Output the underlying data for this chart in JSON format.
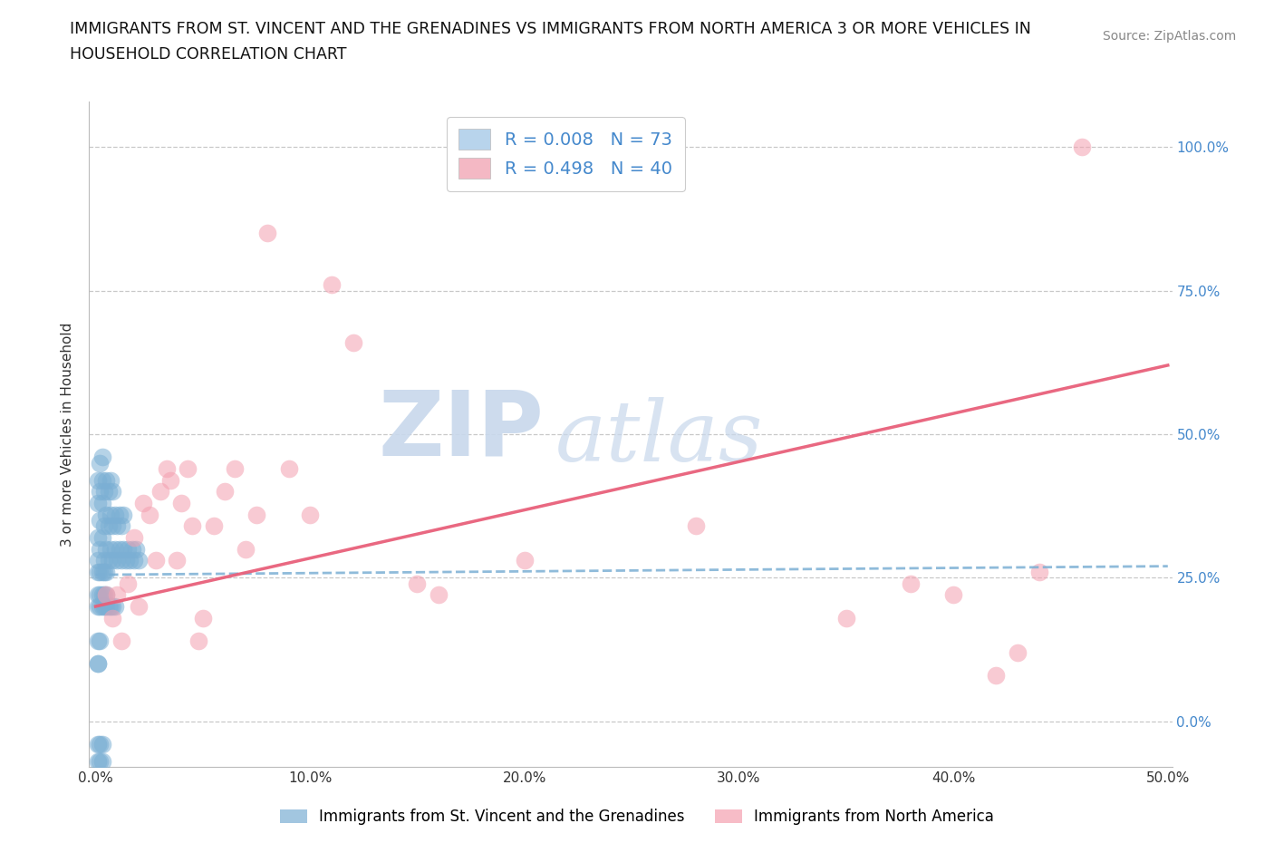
{
  "title_line1": "IMMIGRANTS FROM ST. VINCENT AND THE GRENADINES VS IMMIGRANTS FROM NORTH AMERICA 3 OR MORE VEHICLES IN",
  "title_line2": "HOUSEHOLD CORRELATION CHART",
  "source": "Source: ZipAtlas.com",
  "ylabel": "3 or more Vehicles in Household",
  "xlabel_blue": "Immigrants from St. Vincent and the Grenadines",
  "xlabel_pink": "Immigrants from North America",
  "xlim": [
    -0.003,
    0.502
  ],
  "ylim": [
    -0.08,
    1.08
  ],
  "xtick_vals": [
    0.0,
    0.1,
    0.2,
    0.3,
    0.4,
    0.5
  ],
  "xticklabels": [
    "0.0%",
    "10.0%",
    "20.0%",
    "30.0%",
    "40.0%",
    "50.0%"
  ],
  "ytick_vals": [
    0.0,
    0.25,
    0.5,
    0.75,
    1.0
  ],
  "yticklabels": [
    "0.0%",
    "25.0%",
    "50.0%",
    "75.0%",
    "100.0%"
  ],
  "R_blue": 0.008,
  "N_blue": 73,
  "R_pink": 0.498,
  "N_pink": 40,
  "color_blue": "#7BAFD4",
  "color_pink": "#F4A0B0",
  "line_blue_color": "#7BAFD4",
  "line_pink_color": "#E8607A",
  "legend_box_blue": "#B8D4EC",
  "legend_box_pink": "#F4B8C4",
  "watermark_zip": "ZIP",
  "watermark_atlas": "atlas",
  "blue_x": [
    0.001,
    0.001,
    0.001,
    0.001,
    0.002,
    0.002,
    0.002,
    0.002,
    0.003,
    0.003,
    0.003,
    0.003,
    0.004,
    0.004,
    0.004,
    0.005,
    0.005,
    0.005,
    0.006,
    0.006,
    0.006,
    0.007,
    0.007,
    0.007,
    0.008,
    0.008,
    0.008,
    0.009,
    0.009,
    0.01,
    0.01,
    0.011,
    0.011,
    0.012,
    0.012,
    0.013,
    0.013,
    0.014,
    0.015,
    0.016,
    0.017,
    0.018,
    0.019,
    0.02,
    0.001,
    0.001,
    0.002,
    0.002,
    0.003,
    0.003,
    0.004,
    0.004,
    0.005,
    0.005,
    0.001,
    0.002,
    0.003,
    0.004,
    0.005,
    0.006,
    0.007,
    0.008,
    0.009,
    0.001,
    0.001,
    0.002,
    0.002,
    0.003,
    0.003,
    0.001,
    0.001,
    0.002,
    0.001
  ],
  "blue_y": [
    0.28,
    0.32,
    0.38,
    0.42,
    0.3,
    0.35,
    0.4,
    0.45,
    0.32,
    0.38,
    0.42,
    0.46,
    0.28,
    0.34,
    0.4,
    0.3,
    0.36,
    0.42,
    0.28,
    0.34,
    0.4,
    0.3,
    0.36,
    0.42,
    0.28,
    0.34,
    0.4,
    0.3,
    0.36,
    0.28,
    0.34,
    0.3,
    0.36,
    0.28,
    0.34,
    0.3,
    0.36,
    0.28,
    0.3,
    0.28,
    0.3,
    0.28,
    0.3,
    0.28,
    0.22,
    0.26,
    0.22,
    0.26,
    0.22,
    0.26,
    0.22,
    0.26,
    0.22,
    0.26,
    0.2,
    0.2,
    0.2,
    0.2,
    0.2,
    0.2,
    0.2,
    0.2,
    0.2,
    -0.04,
    -0.07,
    -0.04,
    -0.07,
    -0.04,
    -0.07,
    0.14,
    0.1,
    0.14,
    0.1
  ],
  "pink_x": [
    0.005,
    0.008,
    0.01,
    0.012,
    0.015,
    0.018,
    0.02,
    0.022,
    0.025,
    0.028,
    0.03,
    0.033,
    0.035,
    0.038,
    0.04,
    0.043,
    0.045,
    0.048,
    0.05,
    0.055,
    0.06,
    0.065,
    0.07,
    0.075,
    0.08,
    0.09,
    0.1,
    0.11,
    0.12,
    0.15,
    0.16,
    0.2,
    0.28,
    0.35,
    0.38,
    0.4,
    0.42,
    0.43,
    0.44,
    0.46
  ],
  "pink_y": [
    0.22,
    0.18,
    0.22,
    0.14,
    0.24,
    0.32,
    0.2,
    0.38,
    0.36,
    0.28,
    0.4,
    0.44,
    0.42,
    0.28,
    0.38,
    0.44,
    0.34,
    0.14,
    0.18,
    0.34,
    0.4,
    0.44,
    0.3,
    0.36,
    0.85,
    0.44,
    0.36,
    0.76,
    0.66,
    0.24,
    0.22,
    0.28,
    0.34,
    0.18,
    0.24,
    0.22,
    0.08,
    0.12,
    0.26,
    1.0
  ],
  "pink_line_x0": 0.0,
  "pink_line_y0": 0.2,
  "pink_line_x1": 0.5,
  "pink_line_y1": 0.62,
  "blue_line_x0": 0.0,
  "blue_line_y0": 0.255,
  "blue_line_x1": 0.5,
  "blue_line_y1": 0.27
}
